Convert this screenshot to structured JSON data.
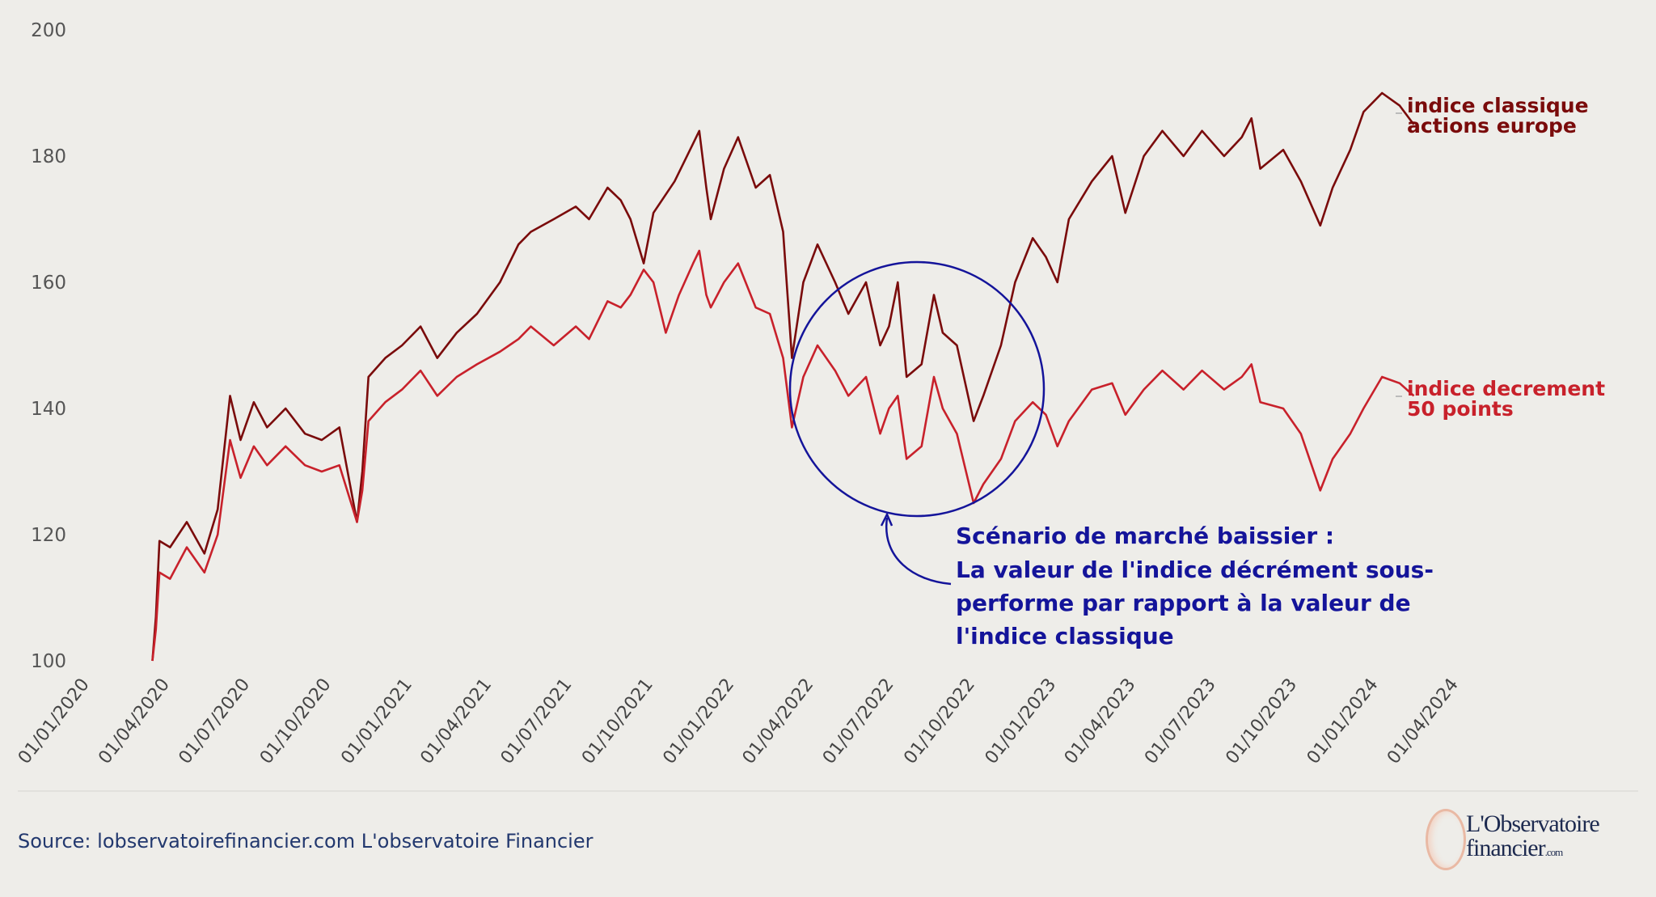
{
  "chart_data": {
    "type": "line",
    "title": "",
    "xlabel": "",
    "ylabel": "",
    "ylim": [
      100,
      200
    ],
    "yticks": [
      100,
      120,
      140,
      160,
      180,
      200
    ],
    "xticks": [
      "01/01/2020",
      "01/04/2020",
      "01/07/2020",
      "01/10/2020",
      "01/01/2021",
      "01/04/2021",
      "01/07/2021",
      "01/10/2021",
      "01/01/2022",
      "01/04/2022",
      "01/07/2022",
      "01/10/2022",
      "01/01/2023",
      "01/04/2023",
      "01/07/2023",
      "01/10/2023",
      "01/01/2024",
      "01/04/2024"
    ],
    "grid": false,
    "series": [
      {
        "name": "indice classique actions europe",
        "color": "#7a0b0b",
        "points": [
          [
            "2020-03-12",
            100
          ],
          [
            "2020-03-16",
            107
          ],
          [
            "2020-03-20",
            119
          ],
          [
            "2020-04-01",
            118
          ],
          [
            "2020-04-20",
            122
          ],
          [
            "2020-05-10",
            117
          ],
          [
            "2020-05-25",
            124
          ],
          [
            "2020-06-08",
            142
          ],
          [
            "2020-06-20",
            135
          ],
          [
            "2020-07-05",
            141
          ],
          [
            "2020-07-20",
            137
          ],
          [
            "2020-08-10",
            140
          ],
          [
            "2020-09-01",
            136
          ],
          [
            "2020-09-20",
            135
          ],
          [
            "2020-10-10",
            137
          ],
          [
            "2020-10-30",
            122
          ],
          [
            "2020-11-05",
            130
          ],
          [
            "2020-11-12",
            145
          ],
          [
            "2020-12-01",
            148
          ],
          [
            "2020-12-20",
            150
          ],
          [
            "2021-01-10",
            153
          ],
          [
            "2021-01-29",
            148
          ],
          [
            "2021-02-20",
            152
          ],
          [
            "2021-03-15",
            155
          ],
          [
            "2021-04-10",
            160
          ],
          [
            "2021-05-01",
            166
          ],
          [
            "2021-05-15",
            168
          ],
          [
            "2021-06-10",
            170
          ],
          [
            "2021-07-05",
            172
          ],
          [
            "2021-07-20",
            170
          ],
          [
            "2021-08-10",
            175
          ],
          [
            "2021-08-25",
            173
          ],
          [
            "2021-09-05",
            170
          ],
          [
            "2021-09-20",
            163
          ],
          [
            "2021-10-01",
            171
          ],
          [
            "2021-10-25",
            176
          ],
          [
            "2021-11-15",
            182
          ],
          [
            "2021-11-22",
            184
          ],
          [
            "2021-11-30",
            175
          ],
          [
            "2021-12-05",
            170
          ],
          [
            "2021-12-20",
            178
          ],
          [
            "2022-01-05",
            183
          ],
          [
            "2022-01-25",
            175
          ],
          [
            "2022-02-10",
            177
          ],
          [
            "2022-02-25",
            168
          ],
          [
            "2022-03-07",
            148
          ],
          [
            "2022-03-20",
            160
          ],
          [
            "2022-04-05",
            166
          ],
          [
            "2022-04-25",
            160
          ],
          [
            "2022-05-10",
            155
          ],
          [
            "2022-05-30",
            160
          ],
          [
            "2022-06-15",
            150
          ],
          [
            "2022-06-25",
            153
          ],
          [
            "2022-07-05",
            160
          ],
          [
            "2022-07-15",
            145
          ],
          [
            "2022-08-01",
            147
          ],
          [
            "2022-08-15",
            158
          ],
          [
            "2022-08-25",
            152
          ],
          [
            "2022-09-10",
            150
          ],
          [
            "2022-09-29",
            138
          ],
          [
            "2022-10-10",
            142
          ],
          [
            "2022-10-30",
            150
          ],
          [
            "2022-11-15",
            160
          ],
          [
            "2022-12-05",
            167
          ],
          [
            "2022-12-20",
            164
          ],
          [
            "2023-01-02",
            160
          ],
          [
            "2023-01-15",
            170
          ],
          [
            "2023-02-10",
            176
          ],
          [
            "2023-03-05",
            180
          ],
          [
            "2023-03-20",
            171
          ],
          [
            "2023-04-10",
            180
          ],
          [
            "2023-05-01",
            184
          ],
          [
            "2023-05-25",
            180
          ],
          [
            "2023-06-15",
            184
          ],
          [
            "2023-07-10",
            180
          ],
          [
            "2023-07-30",
            183
          ],
          [
            "2023-08-10",
            186
          ],
          [
            "2023-08-20",
            178
          ],
          [
            "2023-09-15",
            181
          ],
          [
            "2023-10-05",
            176
          ],
          [
            "2023-10-27",
            169
          ],
          [
            "2023-11-10",
            175
          ],
          [
            "2023-11-30",
            181
          ],
          [
            "2023-12-15",
            187
          ],
          [
            "2024-01-05",
            190
          ],
          [
            "2024-01-25",
            188
          ],
          [
            "2024-02-10",
            185
          ]
        ]
      },
      {
        "name": "indice decrement 50 points",
        "color": "#c8212b",
        "points": [
          [
            "2020-03-12",
            100
          ],
          [
            "2020-03-16",
            105
          ],
          [
            "2020-03-20",
            114
          ],
          [
            "2020-04-01",
            113
          ],
          [
            "2020-04-20",
            118
          ],
          [
            "2020-05-10",
            114
          ],
          [
            "2020-05-25",
            120
          ],
          [
            "2020-06-08",
            135
          ],
          [
            "2020-06-20",
            129
          ],
          [
            "2020-07-05",
            134
          ],
          [
            "2020-07-20",
            131
          ],
          [
            "2020-08-10",
            134
          ],
          [
            "2020-09-01",
            131
          ],
          [
            "2020-09-20",
            130
          ],
          [
            "2020-10-10",
            131
          ],
          [
            "2020-10-30",
            122
          ],
          [
            "2020-11-05",
            127
          ],
          [
            "2020-11-12",
            138
          ],
          [
            "2020-12-01",
            141
          ],
          [
            "2020-12-20",
            143
          ],
          [
            "2021-01-10",
            146
          ],
          [
            "2021-01-29",
            142
          ],
          [
            "2021-02-20",
            145
          ],
          [
            "2021-03-15",
            147
          ],
          [
            "2021-04-10",
            149
          ],
          [
            "2021-05-01",
            151
          ],
          [
            "2021-05-15",
            153
          ],
          [
            "2021-06-10",
            150
          ],
          [
            "2021-07-05",
            153
          ],
          [
            "2021-07-20",
            151
          ],
          [
            "2021-08-10",
            157
          ],
          [
            "2021-08-25",
            156
          ],
          [
            "2021-09-05",
            158
          ],
          [
            "2021-09-20",
            162
          ],
          [
            "2021-10-01",
            160
          ],
          [
            "2021-10-15",
            152
          ],
          [
            "2021-10-30",
            158
          ],
          [
            "2021-11-15",
            163
          ],
          [
            "2021-11-22",
            165
          ],
          [
            "2021-11-30",
            158
          ],
          [
            "2021-12-05",
            156
          ],
          [
            "2021-12-20",
            160
          ],
          [
            "2022-01-05",
            163
          ],
          [
            "2022-01-25",
            156
          ],
          [
            "2022-02-10",
            155
          ],
          [
            "2022-02-25",
            148
          ],
          [
            "2022-03-07",
            137
          ],
          [
            "2022-03-20",
            145
          ],
          [
            "2022-04-05",
            150
          ],
          [
            "2022-04-25",
            146
          ],
          [
            "2022-05-10",
            142
          ],
          [
            "2022-05-30",
            145
          ],
          [
            "2022-06-15",
            136
          ],
          [
            "2022-06-25",
            140
          ],
          [
            "2022-07-05",
            142
          ],
          [
            "2022-07-15",
            132
          ],
          [
            "2022-08-01",
            134
          ],
          [
            "2022-08-15",
            145
          ],
          [
            "2022-08-25",
            140
          ],
          [
            "2022-09-10",
            136
          ],
          [
            "2022-09-29",
            125
          ],
          [
            "2022-10-10",
            128
          ],
          [
            "2022-10-30",
            132
          ],
          [
            "2022-11-15",
            138
          ],
          [
            "2022-12-05",
            141
          ],
          [
            "2022-12-20",
            139
          ],
          [
            "2023-01-02",
            134
          ],
          [
            "2023-01-15",
            138
          ],
          [
            "2023-02-10",
            143
          ],
          [
            "2023-03-05",
            144
          ],
          [
            "2023-03-20",
            139
          ],
          [
            "2023-04-10",
            143
          ],
          [
            "2023-05-01",
            146
          ],
          [
            "2023-05-25",
            143
          ],
          [
            "2023-06-15",
            146
          ],
          [
            "2023-07-10",
            143
          ],
          [
            "2023-07-30",
            145
          ],
          [
            "2023-08-10",
            147
          ],
          [
            "2023-08-20",
            141
          ],
          [
            "2023-09-15",
            140
          ],
          [
            "2023-10-05",
            136
          ],
          [
            "2023-10-27",
            127
          ],
          [
            "2023-11-10",
            132
          ],
          [
            "2023-11-30",
            136
          ],
          [
            "2023-12-15",
            140
          ],
          [
            "2024-01-05",
            145
          ],
          [
            "2024-01-25",
            144
          ],
          [
            "2024-02-10",
            142
          ]
        ]
      }
    ],
    "series_labels": [
      {
        "line1": "indice classique",
        "line2": "actions europe"
      },
      {
        "line1": "indice decrement",
        "line2": "50 points"
      }
    ],
    "annotation": {
      "color": "#14149a",
      "lines": [
        "Scénario de marché baissier :",
        "La valeur de l'indice décrément sous-",
        "performe par rapport à la valeur de",
        "l'indice classique"
      ]
    }
  },
  "footer": {
    "source": "Source: lobservatoirefinancier.com L'observatoire Financier",
    "logo_line1": "L'Observatoire",
    "logo_line2": "financier",
    "logo_suffix": ".com"
  }
}
